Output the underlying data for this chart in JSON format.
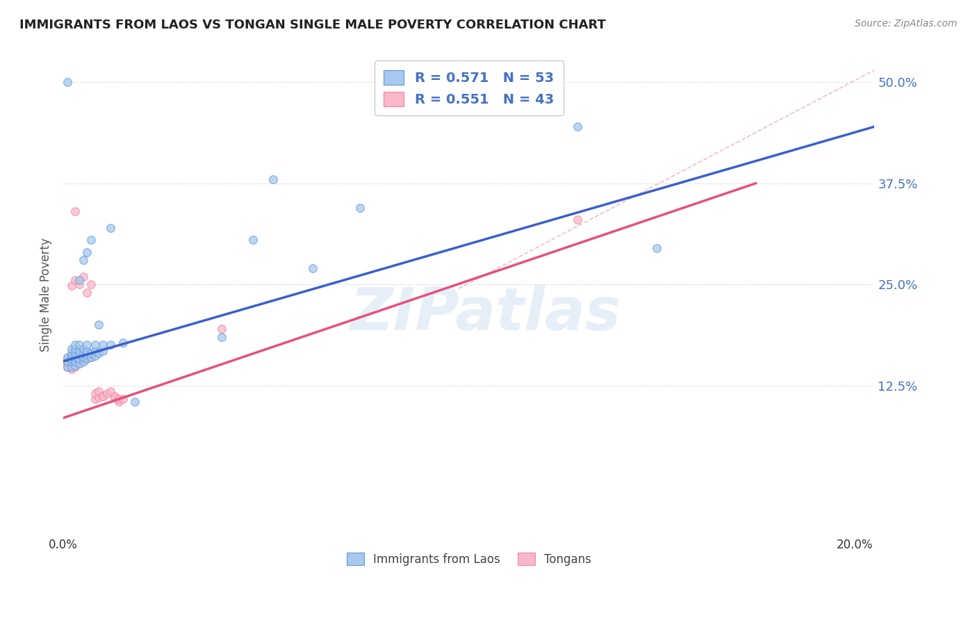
{
  "title": "IMMIGRANTS FROM LAOS VS TONGAN SINGLE MALE POVERTY CORRELATION CHART",
  "source": "Source: ZipAtlas.com",
  "ylabel": "Single Male Poverty",
  "xlim": [
    0.0,
    0.205
  ],
  "ylim": [
    -0.06,
    0.535
  ],
  "yticks": [
    0.125,
    0.25,
    0.375,
    0.5
  ],
  "ytick_labels": [
    "12.5%",
    "25.0%",
    "37.5%",
    "50.0%"
  ],
  "xticks": [
    0.0,
    0.05,
    0.1,
    0.15,
    0.2
  ],
  "xtick_labels": [
    "0.0%",
    "",
    "",
    "",
    "20.0%"
  ],
  "watermark_text": "ZIPatlas",
  "blue_scatter_color": "#a8c8f0",
  "blue_edge_color": "#5b9bd5",
  "pink_scatter_color": "#f8b8c8",
  "pink_edge_color": "#f4829e",
  "blue_line_color": "#3a5fcd",
  "pink_line_color": "#e8507a",
  "grid_color": "#dddddd",
  "right_tick_color": "#4472c4",
  "title_color": "#222222",
  "scatter_size": 70,
  "scatter_alpha": 0.75,
  "blue_line": {
    "x0": 0.0,
    "y0": 0.155,
    "x1": 0.205,
    "y1": 0.445
  },
  "pink_line": {
    "x0": 0.0,
    "y0": 0.085,
    "x1": 0.175,
    "y1": 0.375
  },
  "dash_line": {
    "x0": 0.1,
    "y0": 0.245,
    "x1": 0.205,
    "y1": 0.515
  },
  "legend_label_blue": "Immigrants from Laos",
  "legend_label_pink": "Tongans",
  "blue_data": [
    [
      0.001,
      0.5
    ],
    [
      0.001,
      0.148
    ],
    [
      0.001,
      0.155
    ],
    [
      0.001,
      0.16
    ],
    [
      0.002,
      0.148
    ],
    [
      0.002,
      0.155
    ],
    [
      0.002,
      0.158
    ],
    [
      0.002,
      0.162
    ],
    [
      0.002,
      0.165
    ],
    [
      0.002,
      0.17
    ],
    [
      0.003,
      0.15
    ],
    [
      0.003,
      0.155
    ],
    [
      0.003,
      0.16
    ],
    [
      0.003,
      0.165
    ],
    [
      0.003,
      0.17
    ],
    [
      0.003,
      0.175
    ],
    [
      0.004,
      0.152
    ],
    [
      0.004,
      0.158
    ],
    [
      0.004,
      0.163
    ],
    [
      0.004,
      0.168
    ],
    [
      0.004,
      0.175
    ],
    [
      0.004,
      0.255
    ],
    [
      0.005,
      0.155
    ],
    [
      0.005,
      0.16
    ],
    [
      0.005,
      0.165
    ],
    [
      0.005,
      0.17
    ],
    [
      0.005,
      0.28
    ],
    [
      0.006,
      0.158
    ],
    [
      0.006,
      0.163
    ],
    [
      0.006,
      0.168
    ],
    [
      0.006,
      0.175
    ],
    [
      0.006,
      0.29
    ],
    [
      0.007,
      0.16
    ],
    [
      0.007,
      0.165
    ],
    [
      0.007,
      0.305
    ],
    [
      0.008,
      0.162
    ],
    [
      0.008,
      0.168
    ],
    [
      0.008,
      0.175
    ],
    [
      0.009,
      0.165
    ],
    [
      0.009,
      0.2
    ],
    [
      0.01,
      0.168
    ],
    [
      0.01,
      0.175
    ],
    [
      0.012,
      0.175
    ],
    [
      0.012,
      0.32
    ],
    [
      0.015,
      0.178
    ],
    [
      0.018,
      0.105
    ],
    [
      0.04,
      0.185
    ],
    [
      0.048,
      0.305
    ],
    [
      0.053,
      0.38
    ],
    [
      0.063,
      0.27
    ],
    [
      0.075,
      0.345
    ],
    [
      0.13,
      0.445
    ],
    [
      0.15,
      0.295
    ]
  ],
  "pink_data": [
    [
      0.001,
      0.148
    ],
    [
      0.001,
      0.152
    ],
    [
      0.001,
      0.158
    ],
    [
      0.002,
      0.145
    ],
    [
      0.002,
      0.15
    ],
    [
      0.002,
      0.155
    ],
    [
      0.002,
      0.16
    ],
    [
      0.002,
      0.248
    ],
    [
      0.003,
      0.148
    ],
    [
      0.003,
      0.155
    ],
    [
      0.003,
      0.16
    ],
    [
      0.003,
      0.165
    ],
    [
      0.003,
      0.255
    ],
    [
      0.003,
      0.34
    ],
    [
      0.004,
      0.152
    ],
    [
      0.004,
      0.158
    ],
    [
      0.004,
      0.162
    ],
    [
      0.004,
      0.168
    ],
    [
      0.004,
      0.25
    ],
    [
      0.005,
      0.155
    ],
    [
      0.005,
      0.16
    ],
    [
      0.005,
      0.165
    ],
    [
      0.005,
      0.26
    ],
    [
      0.006,
      0.158
    ],
    [
      0.006,
      0.163
    ],
    [
      0.006,
      0.24
    ],
    [
      0.007,
      0.16
    ],
    [
      0.007,
      0.25
    ],
    [
      0.008,
      0.108
    ],
    [
      0.008,
      0.115
    ],
    [
      0.009,
      0.11
    ],
    [
      0.009,
      0.118
    ],
    [
      0.01,
      0.112
    ],
    [
      0.01,
      0.112
    ],
    [
      0.011,
      0.115
    ],
    [
      0.012,
      0.118
    ],
    [
      0.013,
      0.11
    ],
    [
      0.013,
      0.112
    ],
    [
      0.014,
      0.105
    ],
    [
      0.014,
      0.108
    ],
    [
      0.015,
      0.108
    ],
    [
      0.04,
      0.195
    ],
    [
      0.13,
      0.33
    ]
  ]
}
